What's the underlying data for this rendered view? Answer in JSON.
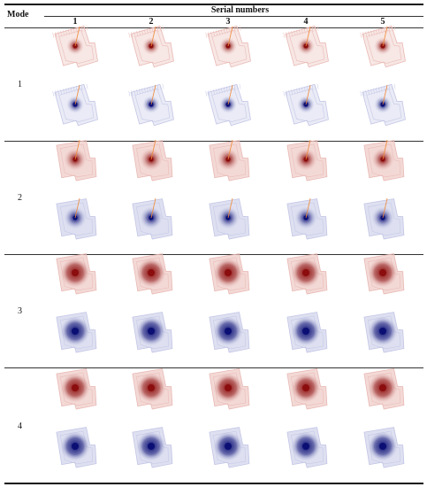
{
  "table": {
    "mode_header": "Mode",
    "serial_header": "Serial numbers",
    "columns": [
      "1",
      "2",
      "3",
      "4",
      "5"
    ],
    "modes": [
      {
        "label": "1"
      },
      {
        "label": "2"
      },
      {
        "label": "3"
      },
      {
        "label": "4"
      }
    ]
  },
  "colors": {
    "red_core": "#8b0d0d",
    "red_light": "#e9b9b4",
    "blue_core": "#0b0f74",
    "blue_light": "#c3c6e6",
    "needle": "#f08a3a",
    "rule": "#111111"
  }
}
